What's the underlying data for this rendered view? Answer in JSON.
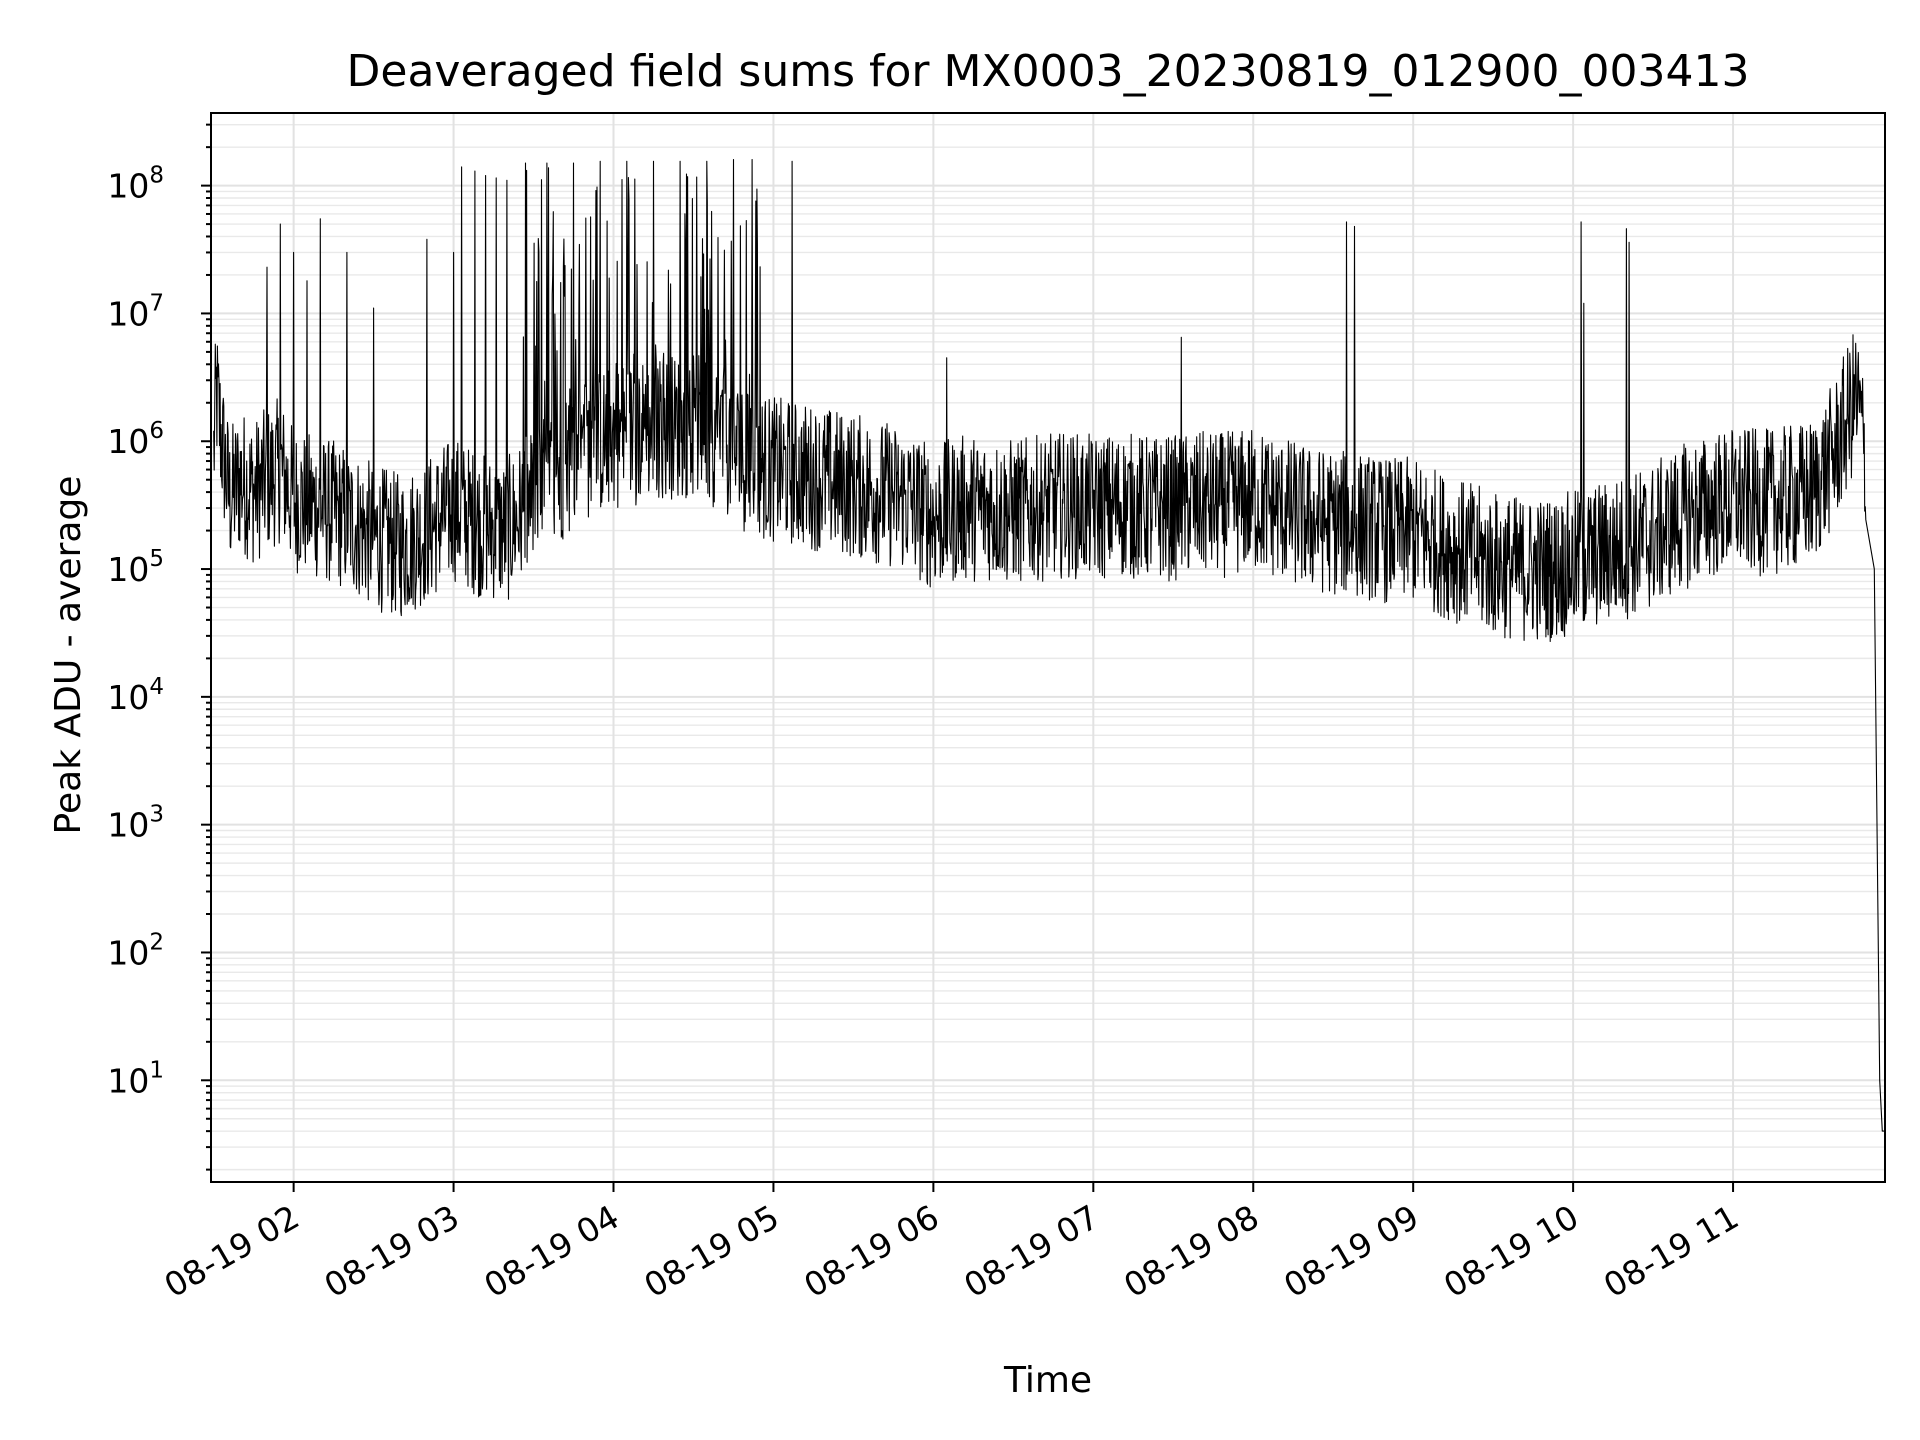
{
  "chart_data": {
    "type": "line",
    "title": "Deaveraged field sums for MX0003_20230819_012900_003413",
    "xlabel": "Time",
    "ylabel": "Peak ADU - average",
    "yscale": "log",
    "ylim": [
      1.6,
      370000000
    ],
    "xlim": [
      "08-19 01:29",
      "08-19 11:57"
    ],
    "grid": true,
    "x_ticks": [
      "08-19 02",
      "08-19 03",
      "08-19 04",
      "08-19 05",
      "08-19 06",
      "08-19 07",
      "08-19 08",
      "08-19 09",
      "08-19 10",
      "08-19 11"
    ],
    "y_ticks": [
      {
        "base": "10",
        "exp": "1",
        "value": 10
      },
      {
        "base": "10",
        "exp": "2",
        "value": 100
      },
      {
        "base": "10",
        "exp": "3",
        "value": 1000
      },
      {
        "base": "10",
        "exp": "4",
        "value": 10000
      },
      {
        "base": "10",
        "exp": "5",
        "value": 100000
      },
      {
        "base": "10",
        "exp": "6",
        "value": 1000000
      },
      {
        "base": "10",
        "exp": "7",
        "value": 10000000
      },
      {
        "base": "10",
        "exp": "8",
        "value": 100000000
      }
    ],
    "series": [
      {
        "color": "#000000",
        "points": [
          [
            "08-19 01:30",
            800000
          ],
          [
            "08-19 01:31",
            2400000
          ],
          [
            "08-19 01:33",
            1000000
          ],
          [
            "08-19 01:36",
            350000
          ],
          [
            "08-19 01:40",
            500000
          ],
          [
            "08-19 01:45",
            400000
          ],
          [
            "08-19 01:50",
            500000
          ],
          [
            "08-19 01:55",
            600000
          ],
          [
            "08-19 02:00",
            350000
          ],
          [
            "08-19 02:10",
            300000
          ],
          [
            "08-19 02:20",
            250000
          ],
          [
            "08-19 02:30",
            180000
          ],
          [
            "08-19 02:40",
            150000
          ],
          [
            "08-19 02:50",
            200000
          ],
          [
            "08-19 03:00",
            300000
          ],
          [
            "08-19 03:10",
            220000
          ],
          [
            "08-19 03:20",
            200000
          ],
          [
            "08-19 03:30",
            350000
          ],
          [
            "08-19 03:40",
            600000
          ],
          [
            "08-19 03:50",
            900000
          ],
          [
            "08-19 04:00",
            1100000
          ],
          [
            "08-19 04:10",
            1200000
          ],
          [
            "08-19 04:20",
            1300000
          ],
          [
            "08-19 04:30",
            1300000
          ],
          [
            "08-19 04:40",
            1100000
          ],
          [
            "08-19 04:50",
            700000
          ],
          [
            "08-19 05:00",
            600000
          ],
          [
            "08-19 05:10",
            550000
          ],
          [
            "08-19 05:20",
            500000
          ],
          [
            "08-19 05:30",
            450000
          ],
          [
            "08-19 05:40",
            400000
          ],
          [
            "08-19 05:50",
            350000
          ],
          [
            "08-19 06:00",
            250000
          ],
          [
            "08-19 06:10",
            300000
          ],
          [
            "08-19 06:20",
            300000
          ],
          [
            "08-19 06:30",
            280000
          ],
          [
            "08-19 06:40",
            300000
          ],
          [
            "08-19 06:50",
            320000
          ],
          [
            "08-19 07:00",
            300000
          ],
          [
            "08-19 07:10",
            320000
          ],
          [
            "08-19 07:20",
            300000
          ],
          [
            "08-19 07:30",
            300000
          ],
          [
            "08-19 07:40",
            320000
          ],
          [
            "08-19 07:50",
            320000
          ],
          [
            "08-19 08:00",
            350000
          ],
          [
            "08-19 08:10",
            300000
          ],
          [
            "08-19 08:20",
            250000
          ],
          [
            "08-19 08:30",
            230000
          ],
          [
            "08-19 08:40",
            220000
          ],
          [
            "08-19 08:50",
            200000
          ],
          [
            "08-19 09:00",
            200000
          ],
          [
            "08-19 09:10",
            160000
          ],
          [
            "08-19 09:20",
            130000
          ],
          [
            "08-19 09:30",
            110000
          ],
          [
            "08-19 09:40",
            100000
          ],
          [
            "08-19 09:50",
            100000
          ],
          [
            "08-19 10:00",
            110000
          ],
          [
            "08-19 10:10",
            130000
          ],
          [
            "08-19 10:20",
            150000
          ],
          [
            "08-19 10:30",
            180000
          ],
          [
            "08-19 10:40",
            250000
          ],
          [
            "08-19 10:50",
            300000
          ],
          [
            "08-19 11:00",
            350000
          ],
          [
            "08-19 11:10",
            330000
          ],
          [
            "08-19 11:20",
            350000
          ],
          [
            "08-19 11:30",
            400000
          ],
          [
            "08-19 11:38",
            800000
          ],
          [
            "08-19 11:43",
            1500000
          ],
          [
            "08-19 11:46",
            2200000
          ],
          [
            "08-19 11:48",
            1500000
          ],
          [
            "08-19 11:50",
            500000
          ],
          [
            "08-19 11:53",
            100000
          ],
          [
            "08-19 11:55",
            10
          ],
          [
            "08-19 11:56",
            4
          ],
          [
            "08-19 11:57",
            4
          ]
        ],
        "spikes": [
          [
            "08-19 01:50",
            23000000
          ],
          [
            "08-19 01:55",
            50000000
          ],
          [
            "08-19 02:00",
            30000000
          ],
          [
            "08-19 02:05",
            18000000
          ],
          [
            "08-19 02:10",
            55000000
          ],
          [
            "08-19 02:20",
            30000000
          ],
          [
            "08-19 02:30",
            11000000
          ],
          [
            "08-19 02:50",
            38000000
          ],
          [
            "08-19 03:00",
            30000000
          ],
          [
            "08-19 03:03",
            140000000
          ],
          [
            "08-19 03:08",
            130000000
          ],
          [
            "08-19 03:12",
            120000000
          ],
          [
            "08-19 03:16",
            115000000
          ],
          [
            "08-19 03:20",
            110000000
          ],
          [
            "08-19 03:27",
            150000000
          ],
          [
            "08-19 03:35",
            150000000
          ],
          [
            "08-19 03:45",
            150000000
          ],
          [
            "08-19 03:55",
            155000000
          ],
          [
            "08-19 04:05",
            155000000
          ],
          [
            "08-19 04:15",
            155000000
          ],
          [
            "08-19 04:25",
            155000000
          ],
          [
            "08-19 04:35",
            155000000
          ],
          [
            "08-19 04:45",
            160000000
          ],
          [
            "08-19 04:52",
            160000000
          ],
          [
            "08-19 05:07",
            155000000
          ],
          [
            "08-19 06:05",
            4500000
          ],
          [
            "08-19 07:33",
            6500000
          ],
          [
            "08-19 08:35",
            52000000
          ],
          [
            "08-19 08:38",
            48000000
          ],
          [
            "08-19 10:03",
            52000000
          ],
          [
            "08-19 10:04",
            12000000
          ],
          [
            "08-19 10:20",
            46000000
          ],
          [
            "08-19 10:21",
            36000000
          ]
        ]
      }
    ]
  }
}
